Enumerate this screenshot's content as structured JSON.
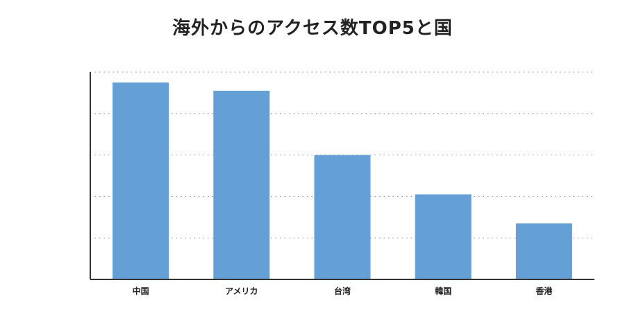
{
  "title": "海外からのアクセス数TOP5と国",
  "chart_data": {
    "type": "bar",
    "title": "海外からのアクセス数TOP5と国",
    "xlabel": "",
    "ylabel": "",
    "categories": [
      "中国",
      "アメリカ",
      "台湾",
      "韓国",
      "香港"
    ],
    "values": [
      95,
      91,
      60,
      41,
      27
    ],
    "ylim": [
      0,
      100
    ],
    "grid": true,
    "bar_color": "#64a0d6"
  }
}
